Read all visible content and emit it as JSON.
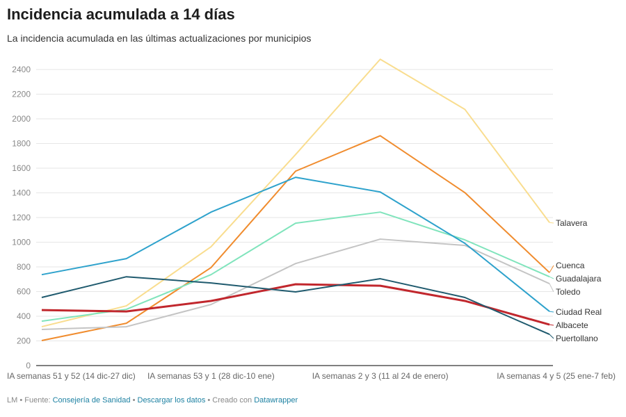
{
  "title": "Incidencia acumulada a 14 días",
  "subtitle": "La incidencia acumulada en las últimas actualizaciones por municipios",
  "footer": {
    "prefix": "LM • Fuente: ",
    "source_link": "Consejería de Sanidad",
    "sep1": " • ",
    "download_link": "Descargar los datos",
    "sep2": " • Creado con ",
    "tool_link": "Datawrapper"
  },
  "chart_data": {
    "type": "line",
    "title": "Incidencia acumulada a 14 días",
    "x": [
      "IA semanas 51 y 52 (14 dic-27 dic)",
      "",
      "IA semanas 53 y 1 (28 dic-10 ene)",
      "",
      "IA semanas 2 y 3 (11 al 24 de enero)",
      "",
      "IA semanas 4 y 5 (25 ene-7 feb)"
    ],
    "ylim": [
      0,
      2400
    ],
    "yticks": [
      0,
      200,
      400,
      600,
      800,
      1000,
      1200,
      1400,
      1600,
      1800,
      2000,
      2200,
      2400
    ],
    "grid": true,
    "legend": "direct labels right",
    "series": [
      {
        "name": "Talavera",
        "color": "#f9dd8f",
        "values": [
          315,
          484,
          963,
          1711,
          2483,
          2077,
          1160
        ]
      },
      {
        "name": "Cuenca",
        "color": "#f08c2e",
        "values": [
          203,
          343,
          794,
          1576,
          1863,
          1402,
          754
        ]
      },
      {
        "name": "Guadalajara",
        "color": "#80e4bc",
        "values": [
          360,
          456,
          737,
          1154,
          1244,
          1019,
          720
        ]
      },
      {
        "name": "Toledo",
        "color": "#c4c4c4",
        "values": [
          293,
          315,
          495,
          827,
          1025,
          974,
          664
        ]
      },
      {
        "name": "Ciudad Real",
        "color": "#2ea2cc",
        "values": [
          737,
          867,
          1244,
          1526,
          1407,
          991,
          439
        ]
      },
      {
        "name": "Albacete",
        "color": "#c1272d",
        "values": [
          450,
          439,
          524,
          659,
          647,
          524,
          332
        ]
      },
      {
        "name": "Puertollano",
        "color": "#1f5a6e",
        "values": [
          552,
          720,
          670,
          597,
          704,
          552,
          253
        ]
      }
    ]
  }
}
